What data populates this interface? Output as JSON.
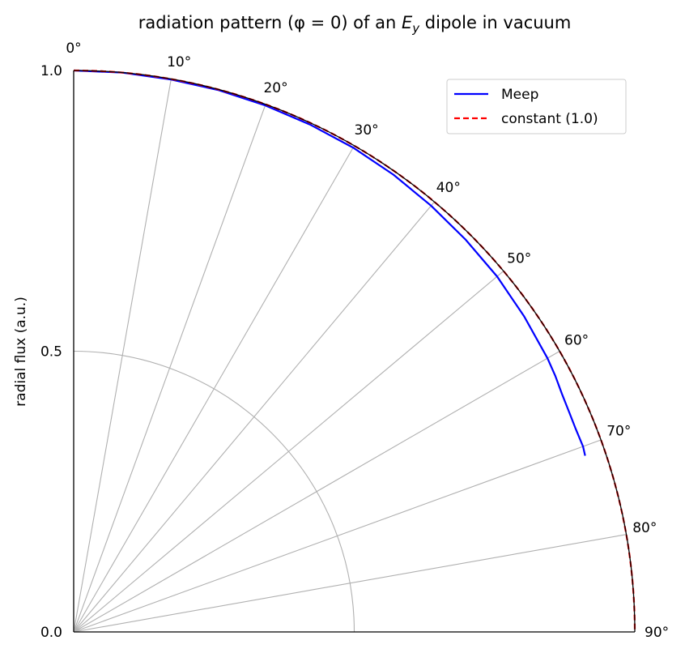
{
  "chart_data": {
    "type": "line",
    "polar": true,
    "title": "radiation pattern (φ = 0) of an E_y dipole in vacuum",
    "title_parts": {
      "before": "radiation pattern (φ = 0) of an ",
      "symbol": "E",
      "subscript": "y",
      "after": " dipole in vacuum"
    },
    "ylabel": "radial flux (a.u.)",
    "theta_range_deg": [
      0,
      90
    ],
    "theta_zero_location": "top",
    "theta_direction": "clockwise",
    "rlim": [
      0,
      1.0
    ],
    "r_ticks": [
      0.0,
      0.5,
      1.0
    ],
    "r_tick_labels": [
      "0.0",
      "0.5",
      "1.0"
    ],
    "r_gridlines": [
      0.5
    ],
    "theta_ticks_deg": [
      0,
      10,
      20,
      30,
      40,
      50,
      60,
      70,
      80,
      90
    ],
    "theta_tick_labels": [
      "0°",
      "10°",
      "20°",
      "30°",
      "40°",
      "50°",
      "60°",
      "70°",
      "80°",
      "90°"
    ],
    "grid": true,
    "legend_location": "upper right",
    "series": [
      {
        "name": "Meep",
        "color": "#0000ff",
        "style": "solid",
        "theta_deg": [
          0,
          5,
          10,
          15,
          20,
          25,
          30,
          35,
          40,
          45,
          50,
          55,
          60,
          62,
          64,
          66,
          68,
          70,
          71
        ],
        "r": [
          1.0,
          1.0,
          0.999,
          0.999,
          0.998,
          0.997,
          0.996,
          0.994,
          0.991,
          0.988,
          0.985,
          0.98,
          0.975,
          0.972,
          0.968,
          0.966,
          0.965,
          0.966,
          0.964
        ]
      },
      {
        "name": "constant (1.0)",
        "color": "#ff0000",
        "style": "dashed",
        "theta_deg": [
          0,
          90
        ],
        "r": [
          1.0,
          1.0
        ]
      }
    ]
  }
}
